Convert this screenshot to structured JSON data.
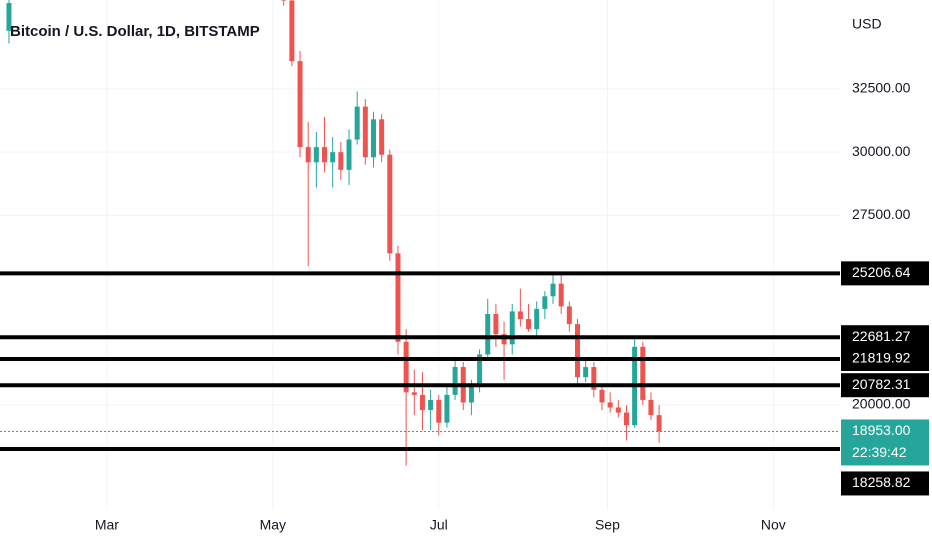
{
  "chart_data": {
    "type": "candlestick",
    "title": "Bitcoin / U.S. Dollar, 1D, BITSTAMP",
    "currency": "USD",
    "x": [
      23,
      124,
      127,
      130,
      133,
      136,
      139,
      142,
      145,
      148,
      151,
      154,
      157,
      160,
      163,
      166,
      169,
      172,
      175,
      178,
      181,
      184,
      187,
      190,
      193,
      196,
      199,
      202,
      205,
      208,
      211,
      214,
      217,
      220,
      223,
      226,
      229,
      232,
      235,
      238,
      241,
      244,
      247,
      250,
      253,
      256,
      259,
      262
    ],
    "open": [
      34800,
      36800,
      36000,
      33600,
      30200,
      29600,
      30200,
      29600,
      30000,
      29300,
      30500,
      31800,
      29800,
      31300,
      29900,
      26000,
      22500,
      20500,
      20400,
      19800,
      20200,
      19300,
      20400,
      21500,
      20100,
      20800,
      22000,
      23600,
      22800,
      22400,
      23700,
      23400,
      23000,
      23800,
      24300,
      24800,
      23900,
      23200,
      21100,
      21500,
      20600,
      20100,
      19900,
      19700,
      19200,
      22300,
      20200,
      19600
    ],
    "high": [
      36500,
      37500,
      36200,
      34000,
      31200,
      30800,
      31400,
      30600,
      30400,
      30900,
      32400,
      32100,
      31600,
      31500,
      30100,
      26300,
      23000,
      21400,
      21300,
      20600,
      20400,
      20800,
      21800,
      21700,
      21000,
      22200,
      24200,
      24000,
      23300,
      24000,
      24600,
      24000,
      24100,
      24500,
      25200,
      25200,
      24100,
      23400,
      21800,
      21700,
      20800,
      20500,
      20200,
      20000,
      22700,
      22500,
      20500,
      20000
    ],
    "low": [
      34300,
      35800,
      33400,
      29800,
      25500,
      28600,
      29200,
      28600,
      28900,
      28700,
      30300,
      29500,
      29400,
      29600,
      25700,
      22000,
      17600,
      19600,
      19000,
      19000,
      18800,
      19100,
      20200,
      19800,
      19600,
      20500,
      21800,
      22300,
      21000,
      22000,
      23100,
      22900,
      22700,
      23400,
      24000,
      23600,
      22900,
      20800,
      20900,
      20300,
      19800,
      19700,
      19500,
      18600,
      19100,
      20000,
      19400,
      18500
    ],
    "close": [
      35900,
      36000,
      33600,
      30200,
      29600,
      30200,
      29600,
      30000,
      29300,
      30500,
      31800,
      29800,
      31300,
      29900,
      26000,
      22500,
      20500,
      20400,
      19800,
      20200,
      19300,
      20400,
      21500,
      20100,
      20800,
      22000,
      23600,
      22800,
      22400,
      23700,
      23400,
      23000,
      23800,
      24300,
      24800,
      23900,
      23200,
      21100,
      21500,
      20600,
      20100,
      19900,
      19700,
      19200,
      22300,
      20200,
      19600,
      18953
    ],
    "up_color": "#26a69a",
    "down_color": "#ef5350",
    "xlim": [
      19.7,
      328.5
    ],
    "xticks": [
      {
        "value": 59,
        "label": "Mar"
      },
      {
        "value": 120,
        "label": "May"
      },
      {
        "value": 181,
        "label": "Jul"
      },
      {
        "value": 243,
        "label": "Sep"
      },
      {
        "value": 304,
        "label": "Nov"
      }
    ],
    "ylim": [
      15846,
      36020
    ],
    "yticks": [
      {
        "value": 20000,
        "label": "20000.00"
      },
      {
        "value": 27500,
        "label": "27500.00"
      },
      {
        "value": 30000,
        "label": "30000.00"
      },
      {
        "value": 32500,
        "label": "32500.00"
      }
    ],
    "grid": true,
    "levels": [
      25206.64,
      22681.27,
      21819.92,
      20782.31,
      18258.82
    ],
    "level_color": "#000000",
    "last_price": {
      "value": 18953,
      "label": "18953.00"
    },
    "countdown": "22:39:42"
  }
}
